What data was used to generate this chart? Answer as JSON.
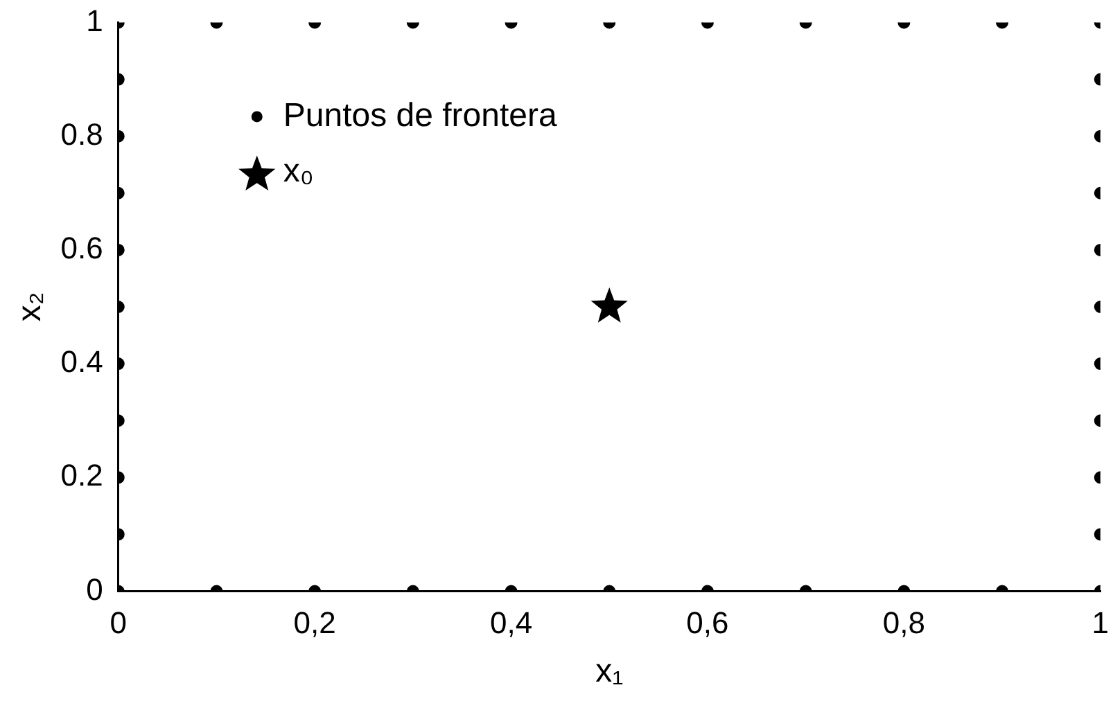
{
  "chart_data": {
    "type": "scatter",
    "xlabel": "x₁",
    "ylabel": "x₂",
    "xlim": [
      0,
      1
    ],
    "ylim": [
      0,
      1
    ],
    "xticks": [
      0,
      {
        "value": 0.2,
        "label": "0,2"
      },
      {
        "value": 0.4,
        "label": "0,4"
      },
      {
        "value": 0.6,
        "label": "0,6"
      },
      {
        "value": 0.8,
        "label": "0,8"
      },
      1
    ],
    "yticks": [
      0,
      0.2,
      0.4,
      0.6,
      0.8,
      1
    ],
    "grid": false,
    "legend": "top left",
    "series": [
      {
        "name": "Puntos de frontera",
        "color": "#000000",
        "marker": "circle",
        "x": [
          0,
          0.1,
          0.2,
          0.3,
          0.4,
          0.5,
          0.6,
          0.7,
          0.8,
          0.9,
          1,
          0,
          0.1,
          0.2,
          0.3,
          0.4,
          0.5,
          0.6,
          0.7,
          0.8,
          0.9,
          1,
          0,
          0,
          0,
          0,
          0,
          0,
          0,
          0,
          0,
          1,
          1,
          1,
          1,
          1,
          1,
          1,
          1,
          1
        ],
        "values": [
          0,
          0,
          0,
          0,
          0,
          0,
          0,
          0,
          0,
          0,
          0,
          1,
          1,
          1,
          1,
          1,
          1,
          1,
          1,
          1,
          1,
          1,
          0.1,
          0.2,
          0.3,
          0.4,
          0.5,
          0.6,
          0.7,
          0.8,
          0.9,
          0.1,
          0.2,
          0.3,
          0.4,
          0.5,
          0.6,
          0.7,
          0.8,
          0.9
        ]
      },
      {
        "name": "x₀",
        "color": "#000000",
        "marker": "star",
        "x": [
          0.5
        ],
        "values": [
          0.5
        ]
      }
    ]
  }
}
